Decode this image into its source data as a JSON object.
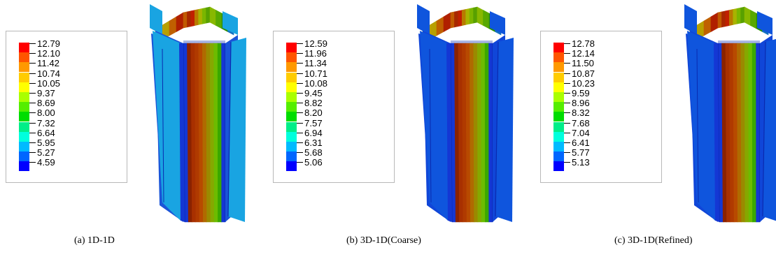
{
  "colormap": [
    "#ff0000",
    "#ff5500",
    "#ff9900",
    "#ffcc00",
    "#ffff00",
    "#aaff00",
    "#55ee00",
    "#00dd00",
    "#00ee88",
    "#00ffdd",
    "#00bbff",
    "#0066ff",
    "#0000ff"
  ],
  "panels": [
    {
      "caption": "(a)  1D-1D",
      "labels": [
        "12.79",
        "12.10",
        "11.42",
        "10.74",
        "10.05",
        "9.37",
        "8.69",
        "8.00",
        "7.32",
        "6.64",
        "5.95",
        "5.27",
        "4.59"
      ],
      "flange_color": "#19a4e2",
      "web_blue": "#1a55d8"
    },
    {
      "caption": "(b)  3D-1D(Coarse)",
      "labels": [
        "12.59",
        "11.96",
        "11.34",
        "10.71",
        "10.08",
        "9.45",
        "8.82",
        "8.20",
        "7.57",
        "6.94",
        "6.31",
        "5.68",
        "5.06"
      ],
      "flange_color": "#0f55dd",
      "web_blue": "#1046d8"
    },
    {
      "caption": "(c)  3D-1D(Refined)",
      "labels": [
        "12.78",
        "12.14",
        "11.50",
        "10.87",
        "10.23",
        "9.59",
        "8.96",
        "8.32",
        "7.68",
        "7.04",
        "6.41",
        "5.77",
        "5.13"
      ],
      "flange_color": "#0f55dd",
      "web_blue": "#1046d8"
    }
  ]
}
